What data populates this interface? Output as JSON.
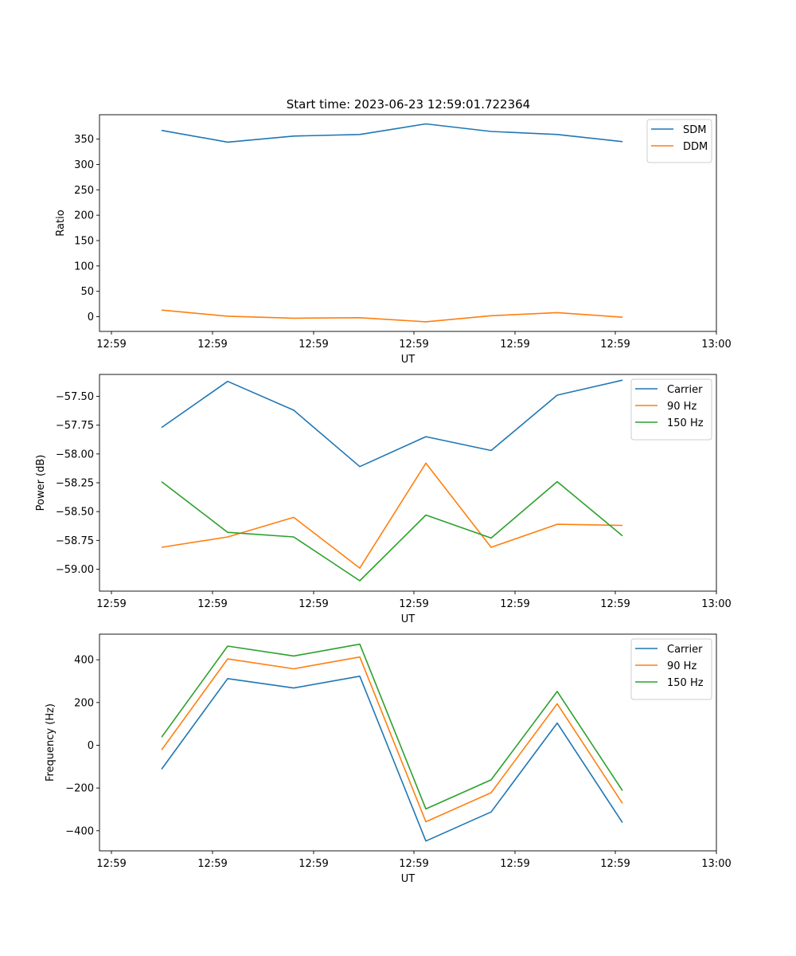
{
  "figure_title": "Start time: 2023-06-23 12:59:01.722364",
  "chart_data": [
    {
      "type": "line",
      "title": "Start time: 2023-06-23 12:59:01.722364",
      "xlabel": "UT",
      "ylabel": "Ratio",
      "xticks": [
        "12:59",
        "12:59",
        "12:59",
        "12:59",
        "12:59",
        "12:59",
        "13:00"
      ],
      "yticks": [
        "0",
        "50",
        "100",
        "150",
        "200",
        "250",
        "300",
        "350"
      ],
      "ytick_values": [
        0,
        50,
        100,
        150,
        200,
        250,
        300,
        350
      ],
      "ylim": [
        -29,
        398
      ],
      "legend_position": "upper right",
      "series": [
        {
          "name": "SDM",
          "color": "#1f77b4",
          "values": [
            367,
            344,
            356,
            359,
            380,
            365,
            359,
            345
          ]
        },
        {
          "name": "DDM",
          "color": "#ff7f0e",
          "values": [
            13,
            1,
            -3,
            -2,
            -10,
            2,
            8,
            -1
          ]
        }
      ]
    },
    {
      "type": "line",
      "title": "",
      "xlabel": "UT",
      "ylabel": "Power (dB)",
      "xticks": [
        "12:59",
        "12:59",
        "12:59",
        "12:59",
        "12:59",
        "12:59",
        "13:00"
      ],
      "yticks": [
        "−59.00",
        "−58.75",
        "−58.50",
        "−58.25",
        "−58.00",
        "−57.75",
        "−57.50"
      ],
      "ytick_values": [
        -59.0,
        -58.75,
        -58.5,
        -58.25,
        -58.0,
        -57.75,
        -57.5
      ],
      "ylim": [
        -59.19,
        -57.31
      ],
      "legend_position": "upper right",
      "series": [
        {
          "name": "Carrier",
          "color": "#1f77b4",
          "values": [
            -57.77,
            -57.37,
            -57.62,
            -58.11,
            -57.85,
            -57.97,
            -57.49,
            -57.36
          ]
        },
        {
          "name": "90 Hz",
          "color": "#ff7f0e",
          "values": [
            -58.81,
            -58.72,
            -58.55,
            -58.99,
            -58.08,
            -58.81,
            -58.61,
            -58.62
          ]
        },
        {
          "name": "150 Hz",
          "color": "#2ca02c",
          "values": [
            -58.24,
            -58.68,
            -58.72,
            -59.1,
            -58.53,
            -58.73,
            -58.24,
            -58.71
          ]
        }
      ]
    },
    {
      "type": "line",
      "title": "",
      "xlabel": "UT",
      "ylabel": "Frequency (Hz)",
      "xticks": [
        "12:59",
        "12:59",
        "12:59",
        "12:59",
        "12:59",
        "12:59",
        "13:00"
      ],
      "yticks": [
        "−400",
        "−200",
        "0",
        "200",
        "400"
      ],
      "ytick_values": [
        -400,
        -200,
        0,
        200,
        400
      ],
      "ylim": [
        -494,
        520
      ],
      "legend_position": "upper right",
      "series": [
        {
          "name": "Carrier",
          "color": "#1f77b4",
          "values": [
            -112,
            312,
            268,
            323,
            -448,
            -312,
            104,
            -362
          ]
        },
        {
          "name": "90 Hz",
          "color": "#ff7f0e",
          "values": [
            -22,
            404,
            358,
            413,
            -358,
            -222,
            194,
            -272
          ]
        },
        {
          "name": "150 Hz",
          "color": "#2ca02c",
          "values": [
            38,
            464,
            418,
            473,
            -298,
            -162,
            252,
            -212
          ]
        }
      ]
    }
  ]
}
